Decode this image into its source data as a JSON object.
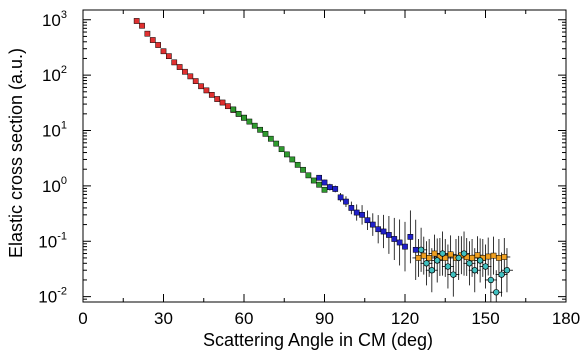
{
  "chart_data": {
    "type": "scatter",
    "xlabel": "Scattering Angle in CM (deg)",
    "ylabel": "Elastic cross section (a.u.)",
    "xlim": [
      0,
      180
    ],
    "ylim": [
      0.008,
      1500
    ],
    "y_scale": "log",
    "grid": false,
    "x_ticks": [
      0,
      30,
      60,
      90,
      120,
      150,
      180
    ],
    "x_tick_labels": [
      "0",
      "30",
      "60",
      "90",
      "120",
      "150",
      "180"
    ],
    "y_ticks": [
      1000,
      100,
      10,
      1,
      0.1,
      0.01
    ],
    "y_tick_labels": [
      {
        "base": "10",
        "exp": "3"
      },
      {
        "base": "10",
        "exp": "2"
      },
      {
        "base": "10",
        "exp": "1"
      },
      {
        "base": "10",
        "exp": "0"
      },
      {
        "base": "10",
        "exp": "-1"
      },
      {
        "base": "10",
        "exp": "-2"
      }
    ],
    "series": [
      {
        "color": "#e03030",
        "marker": "square",
        "points": [
          [
            20,
            950
          ],
          [
            22,
            780
          ],
          [
            24,
            560
          ],
          [
            26,
            430
          ],
          [
            28,
            350
          ],
          [
            30,
            270
          ],
          [
            32,
            220
          ],
          [
            34,
            170
          ],
          [
            36,
            140
          ],
          [
            38,
            115
          ],
          [
            40,
            95
          ],
          [
            42,
            78
          ],
          [
            44,
            63
          ],
          [
            46,
            53
          ],
          [
            48,
            44
          ],
          [
            50,
            37
          ],
          [
            52,
            32
          ],
          [
            54,
            27.5
          ],
          [
            56,
            23.5
          ],
          [
            58,
            20
          ],
          [
            60,
            17
          ]
        ]
      },
      {
        "color": "#2e9a2e",
        "marker": "square",
        "points": [
          [
            56,
            24
          ],
          [
            58,
            20
          ],
          [
            60,
            17
          ],
          [
            62,
            14.5
          ],
          [
            64,
            12.2
          ],
          [
            66,
            10.3
          ],
          [
            68,
            8.7
          ],
          [
            70,
            7.1
          ],
          [
            72,
            5.8
          ],
          [
            74,
            4.6
          ],
          [
            76,
            3.7
          ],
          [
            78,
            3.0
          ],
          [
            80,
            2.4
          ],
          [
            82,
            1.95
          ],
          [
            84,
            1.55
          ],
          [
            86,
            1.25
          ],
          [
            88,
            1.05
          ],
          [
            90,
            0.85
          ]
        ]
      },
      {
        "color": "#2020c8",
        "marker": "square",
        "points": [
          [
            88,
            1.4
          ],
          [
            90,
            1.15
          ],
          [
            92,
            0.95
          ],
          [
            94,
            0.88
          ],
          [
            96,
            0.62
          ],
          [
            98,
            0.52
          ],
          [
            100,
            0.4
          ],
          [
            102,
            0.33
          ],
          [
            104,
            0.3
          ],
          [
            106,
            0.24
          ],
          [
            108,
            0.2
          ],
          [
            110,
            0.165
          ],
          [
            112,
            0.15
          ],
          [
            114,
            0.13
          ],
          [
            116,
            0.11
          ],
          [
            118,
            0.095
          ],
          [
            120,
            0.08
          ],
          [
            122,
            0.12
          ],
          [
            124,
            0.07
          ]
        ],
        "error_factor": [
          1.1,
          1.12,
          1.15,
          1.15,
          1.2,
          1.25,
          1.3,
          1.4,
          1.5,
          1.5,
          1.6,
          1.8,
          2.0,
          2.2,
          2.4,
          2.6,
          2.8,
          3.0,
          3.5
        ]
      },
      {
        "color": "#f0a020",
        "marker": "square",
        "points": [
          [
            125,
            0.05
          ],
          [
            127,
            0.055
          ],
          [
            129,
            0.05
          ],
          [
            131,
            0.06
          ],
          [
            133,
            0.052
          ],
          [
            135,
            0.05
          ],
          [
            137,
            0.058
          ],
          [
            139,
            0.05
          ],
          [
            141,
            0.056
          ],
          [
            143,
            0.052
          ],
          [
            145,
            0.05
          ],
          [
            147,
            0.056
          ],
          [
            149,
            0.05
          ],
          [
            151,
            0.053
          ],
          [
            153,
            0.055
          ],
          [
            155,
            0.05
          ],
          [
            157,
            0.052
          ]
        ],
        "error_factor": 2.2
      },
      {
        "color": "#40c0c0",
        "marker": "circle",
        "points": [
          [
            126,
            0.07
          ],
          [
            128,
            0.04
          ],
          [
            130,
            0.03
          ],
          [
            132,
            0.045
          ],
          [
            134,
            0.06
          ],
          [
            136,
            0.035
          ],
          [
            138,
            0.025
          ],
          [
            140,
            0.05
          ],
          [
            142,
            0.06
          ],
          [
            144,
            0.04
          ],
          [
            146,
            0.03
          ],
          [
            148,
            0.045
          ],
          [
            150,
            0.035
          ],
          [
            152,
            0.02
          ],
          [
            154,
            0.012
          ],
          [
            156,
            0.025
          ],
          [
            158,
            0.03
          ]
        ],
        "error_factor": 2.5
      }
    ]
  }
}
